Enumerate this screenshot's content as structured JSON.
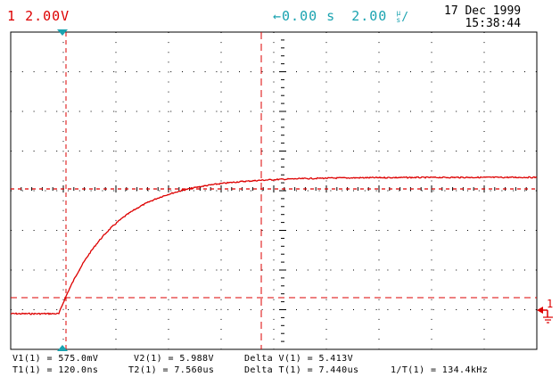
{
  "header": {
    "channel_marker": "1",
    "channel_scale": "2.00V",
    "time_offset": "0.00 s",
    "time_per_div": "2.00",
    "time_per_div_unit_top": "µ",
    "time_per_div_unit_bottom": "s",
    "date": "17 Dec 1999",
    "time": "15:38:44"
  },
  "trace": {
    "color": "#dd0000",
    "baseline_level": 0.0,
    "final_level": 5.988,
    "rise_start_us": 0.12,
    "time_constant_us": 2.0
  },
  "markers": {
    "ground_marker": "1",
    "cursor_color": "#dd0000",
    "trigger_color": "#1aa3b0"
  },
  "measurements": {
    "v1": "V1(1) = 575.0mV",
    "v2": "V2(1) = 5.988V",
    "delta_v": "Delta V(1) = 5.413V",
    "t1": "T1(1) = 120.0ns",
    "t2": "T2(1) = 7.560us",
    "delta_t": "Delta T(1) = 7.440us",
    "inv_t": "1/T(1) = 134.4kHz"
  }
}
